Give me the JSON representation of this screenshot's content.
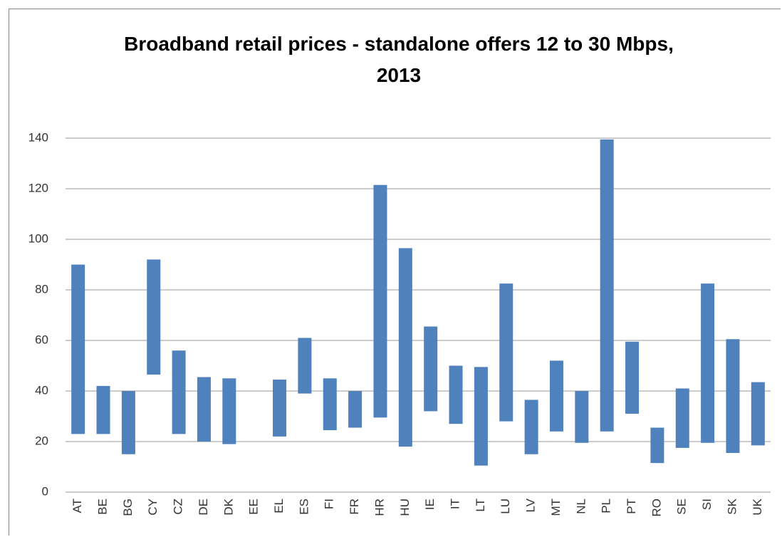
{
  "chart_data": {
    "type": "floating-bar",
    "title": "Broadband retail prices - standalone offers 12 to 30 Mbps, 2013",
    "categories": [
      "AT",
      "BE",
      "BG",
      "CY",
      "CZ",
      "DE",
      "DK",
      "EE",
      "EL",
      "ES",
      "FI",
      "FR",
      "HR",
      "HU",
      "IE",
      "IT",
      "LT",
      "LU",
      "LV",
      "MT",
      "NL",
      "PL",
      "PT",
      "RO",
      "SE",
      "SI",
      "SK",
      "UK"
    ],
    "values": [
      [
        23,
        90
      ],
      [
        23,
        42
      ],
      [
        15,
        40
      ],
      [
        46.5,
        92
      ],
      [
        23,
        56
      ],
      [
        20,
        45.5
      ],
      [
        19,
        45
      ],
      null,
      [
        22,
        44.5
      ],
      [
        39,
        61
      ],
      [
        24.5,
        45
      ],
      [
        25.5,
        40
      ],
      [
        29.5,
        121.5
      ],
      [
        18,
        96.5
      ],
      [
        32,
        65.5
      ],
      [
        27,
        50
      ],
      [
        10.5,
        49.5
      ],
      [
        28,
        82.5
      ],
      [
        15,
        36.5
      ],
      [
        24,
        52
      ],
      [
        19.5,
        40
      ],
      [
        24,
        139.5
      ],
      [
        31,
        59.5
      ],
      [
        11.5,
        25.5
      ],
      [
        17.5,
        41
      ],
      [
        19.5,
        82.5
      ],
      [
        15.5,
        60.5
      ],
      [
        18.5,
        43.5
      ]
    ],
    "color": "#4f81bd",
    "ylim": [
      0,
      140
    ],
    "yticks": [
      0,
      20,
      40,
      60,
      80,
      100,
      120,
      140
    ],
    "grid": true
  }
}
